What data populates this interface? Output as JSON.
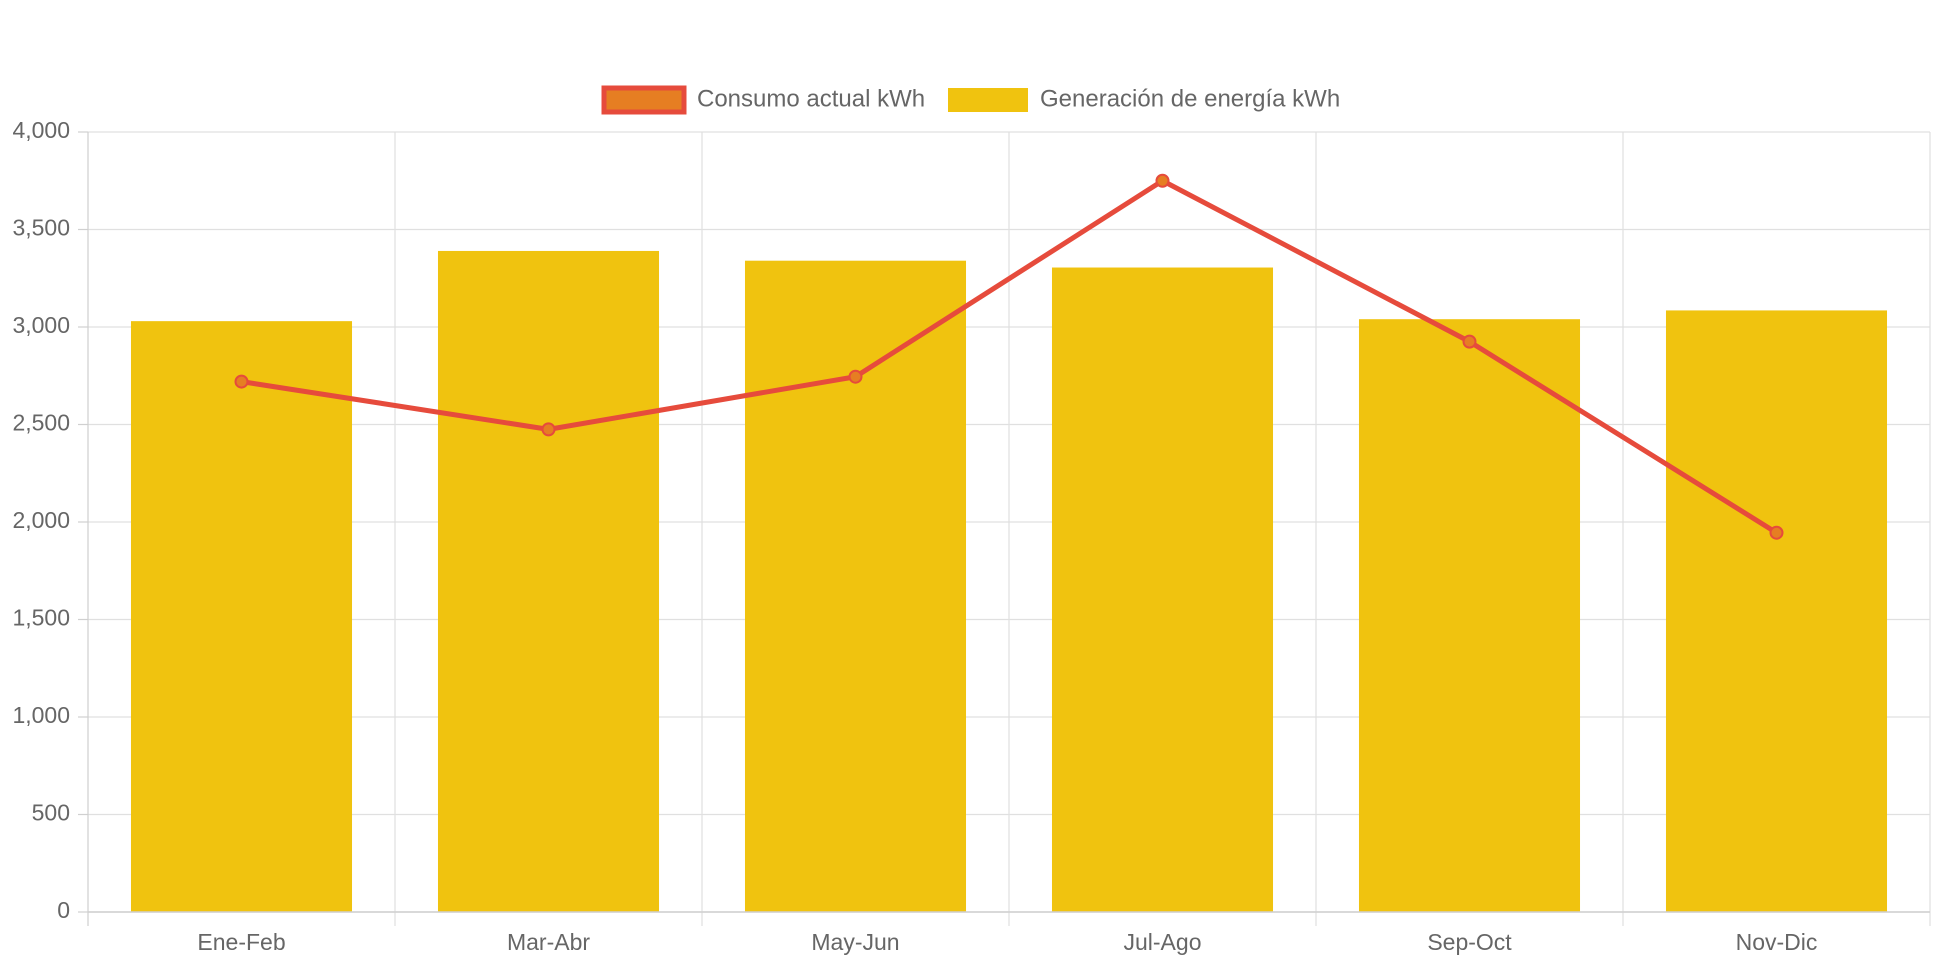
{
  "chart_data": {
    "type": "bar",
    "categories": [
      "Ene-Feb",
      "Mar-Abr",
      "May-Jun",
      "Jul-Ago",
      "Sep-Oct",
      "Nov-Dic"
    ],
    "series": [
      {
        "name": "Generación de energía kWh",
        "type": "bar",
        "color": "#F0C30F",
        "values": [
          3030,
          3390,
          3340,
          3305,
          3040,
          3085
        ]
      },
      {
        "name": "Consumo actual kWh",
        "type": "line",
        "color": "#E64B3C",
        "marker_fill": "#E67E22",
        "values": [
          2720,
          2475,
          2745,
          3750,
          2925,
          1945
        ]
      }
    ],
    "ylim": [
      0,
      4000
    ],
    "yticks": [
      0,
      500,
      1000,
      1500,
      2000,
      2500,
      3000,
      3500,
      4000
    ],
    "ytick_labels": [
      "0",
      "500",
      "1,000",
      "1,500",
      "2,000",
      "2,500",
      "3,000",
      "3,500",
      "4,000"
    ],
    "legend_position": "top-center",
    "grid": true,
    "title": "",
    "xlabel": "",
    "ylabel": ""
  }
}
